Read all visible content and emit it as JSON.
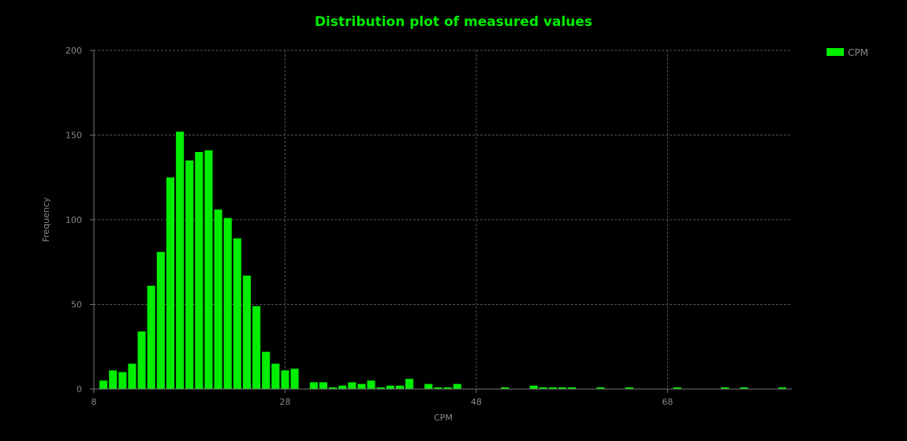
{
  "colors": {
    "background": "#000000",
    "bar": "#00ee00",
    "title": "#00ee00",
    "axis_text": "#888888",
    "axis_line": "#777777",
    "grid": "#555555"
  },
  "chart_data": {
    "type": "bar",
    "title": "Distribution plot of measured values",
    "xlabel": "CPM",
    "ylabel": "Frequency",
    "xlim": [
      8,
      81
    ],
    "ylim": [
      0,
      200
    ],
    "xticks": [
      8,
      28,
      48,
      68
    ],
    "yticks": [
      0,
      50,
      100,
      150,
      200
    ],
    "grid": true,
    "legend_position": "top-right",
    "bin_width": 1,
    "series": [
      {
        "name": "CPM",
        "x": [
          9,
          10,
          11,
          12,
          13,
          14,
          15,
          16,
          17,
          18,
          19,
          20,
          21,
          22,
          23,
          24,
          25,
          26,
          27,
          28,
          29,
          31,
          32,
          33,
          34,
          35,
          36,
          37,
          38,
          39,
          40,
          41,
          43,
          44,
          45,
          46,
          51,
          54,
          55,
          56,
          57,
          58,
          61,
          64,
          69,
          74,
          76,
          80
        ],
        "values": [
          5,
          11,
          10,
          15,
          34,
          61,
          81,
          125,
          152,
          135,
          140,
          141,
          106,
          101,
          89,
          67,
          49,
          22,
          15,
          11,
          12,
          4,
          4,
          1,
          2,
          4,
          3,
          5,
          1,
          2,
          2,
          6,
          3,
          1,
          1,
          3,
          1,
          2,
          1,
          1,
          1,
          1,
          1,
          1,
          1,
          1,
          1,
          1
        ]
      }
    ]
  }
}
